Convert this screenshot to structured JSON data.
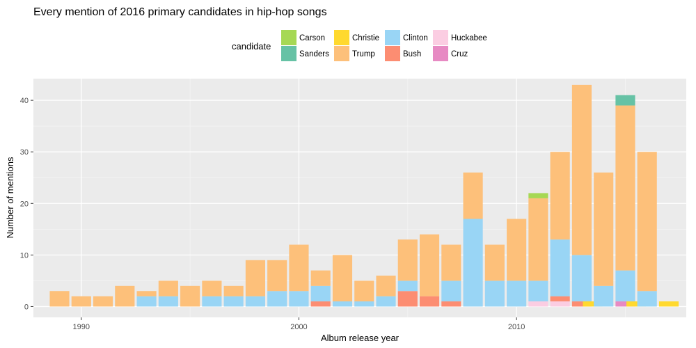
{
  "chart_data": {
    "type": "bar",
    "stacked": true,
    "title": "Every mention of 2016 primary candidates in hip-hop songs",
    "xlabel": "Album release year",
    "ylabel": "Number of mentions",
    "xlim": [
      1987.8,
      2017.8
    ],
    "ylim": [
      -2.1,
      44.2
    ],
    "x_ticks": [
      1990,
      2000,
      2010
    ],
    "y_ticks": [
      0,
      10,
      20,
      30,
      40
    ],
    "grid": true,
    "legend": {
      "title": "candidate",
      "position": "top",
      "entries": [
        {
          "name": "Carson",
          "color": "#a6d854"
        },
        {
          "name": "Sanders",
          "color": "#66c2a5"
        },
        {
          "name": "Christie",
          "color": "#ffd92f"
        },
        {
          "name": "Trump",
          "color": "#fdc07a"
        },
        {
          "name": "Clinton",
          "color": "#99d5f5"
        },
        {
          "name": "Bush",
          "color": "#fc8d72"
        },
        {
          "name": "Huckabee",
          "color": "#fbcde2"
        },
        {
          "name": "Cruz",
          "color": "#e78ac3"
        }
      ]
    },
    "stack_order_bottom_to_top": [
      "Christie",
      "Cruz",
      "Huckabee",
      "Bush",
      "Clinton",
      "Trump",
      "Sanders",
      "Carson"
    ],
    "series": [
      {
        "name": "Trump",
        "color": "#fdc07a",
        "points": [
          [
            1989,
            3
          ],
          [
            1990,
            2
          ],
          [
            1991,
            2
          ],
          [
            1992,
            4
          ],
          [
            1993,
            1
          ],
          [
            1994,
            3
          ],
          [
            1995,
            4
          ],
          [
            1996,
            3
          ],
          [
            1997,
            2
          ],
          [
            1998,
            7
          ],
          [
            1999,
            6
          ],
          [
            2000,
            9
          ],
          [
            2001,
            3
          ],
          [
            2002,
            9
          ],
          [
            2003,
            4
          ],
          [
            2004,
            4
          ],
          [
            2005,
            8
          ],
          [
            2006,
            12
          ],
          [
            2007,
            7
          ],
          [
            2008,
            9
          ],
          [
            2009,
            7
          ],
          [
            2010,
            12
          ],
          [
            2011,
            16
          ],
          [
            2012,
            17
          ],
          [
            2013,
            33
          ],
          [
            2014,
            22
          ],
          [
            2015,
            32
          ],
          [
            2016,
            27
          ]
        ]
      },
      {
        "name": "Clinton",
        "color": "#99d5f5",
        "points": [
          [
            1993,
            2
          ],
          [
            1994,
            2
          ],
          [
            1996,
            2
          ],
          [
            1997,
            2
          ],
          [
            1998,
            2
          ],
          [
            1999,
            3
          ],
          [
            2000,
            3
          ],
          [
            2001,
            3
          ],
          [
            2002,
            1
          ],
          [
            2003,
            1
          ],
          [
            2004,
            2
          ],
          [
            2005,
            2
          ],
          [
            2007,
            4
          ],
          [
            2008,
            17
          ],
          [
            2009,
            5
          ],
          [
            2010,
            5
          ],
          [
            2011,
            4
          ],
          [
            2012,
            11
          ],
          [
            2013,
            9
          ],
          [
            2014,
            4
          ],
          [
            2015,
            6
          ],
          [
            2016,
            3
          ]
        ]
      },
      {
        "name": "Bush",
        "color": "#fc8d72",
        "points": [
          [
            2001,
            1
          ],
          [
            2005,
            3
          ],
          [
            2006,
            2
          ],
          [
            2007,
            1
          ],
          [
            2012,
            1
          ],
          [
            2013,
            1
          ]
        ]
      },
      {
        "name": "Huckabee",
        "color": "#fbcde2",
        "points": [
          [
            2011,
            1
          ],
          [
            2012,
            1
          ]
        ]
      },
      {
        "name": "Cruz",
        "color": "#e78ac3",
        "points": [
          [
            2015,
            1
          ]
        ]
      },
      {
        "name": "Christie",
        "color": "#ffd92f",
        "points": [
          [
            2013.5,
            1
          ],
          [
            2015.5,
            1
          ],
          [
            2017,
            1
          ]
        ]
      },
      {
        "name": "Sanders",
        "color": "#66c2a5",
        "points": [
          [
            2015,
            2
          ]
        ]
      },
      {
        "name": "Carson",
        "color": "#a6d854",
        "points": [
          [
            2011,
            1
          ]
        ]
      }
    ]
  }
}
